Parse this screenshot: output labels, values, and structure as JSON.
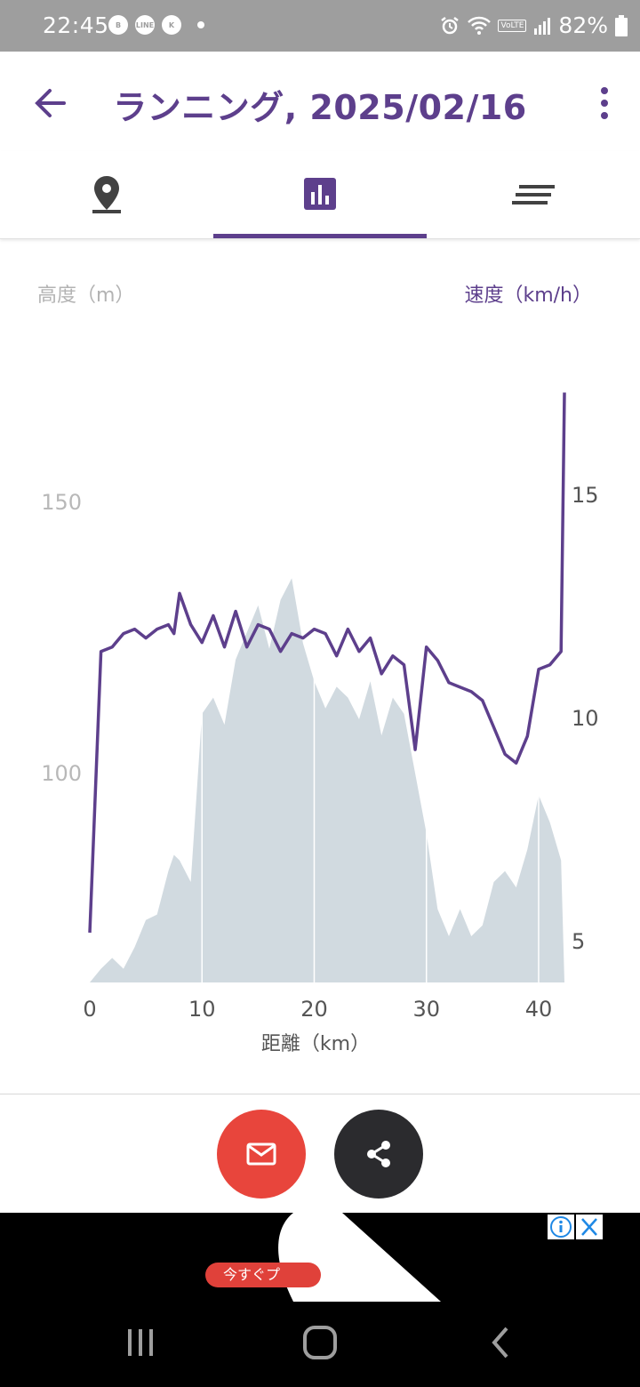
{
  "status": {
    "time": "22:45",
    "battery": "82%",
    "notif_icons": [
      "B",
      "LINE",
      "K"
    ],
    "volte_label": "VoLTE"
  },
  "appbar": {
    "title": "ランニング, 2025/02/16"
  },
  "tabs": [
    {
      "name": "map",
      "icon": "location-pin-icon"
    },
    {
      "name": "chart",
      "icon": "bar-chart-icon",
      "selected": true
    },
    {
      "name": "details",
      "icon": "list-lines-icon"
    }
  ],
  "chart": {
    "left_axis_title": "高度（m）",
    "right_axis_title": "速度（km/h）",
    "xlabel": "距離（km）"
  },
  "chart_data": {
    "type": "area",
    "x": [
      0,
      1,
      2,
      3,
      4,
      5,
      6,
      7,
      7.5,
      8,
      9,
      10,
      11,
      12,
      13,
      14,
      15,
      16,
      17,
      18,
      19,
      20,
      21,
      22,
      23,
      24,
      25,
      26,
      27,
      28,
      29,
      30,
      31,
      32,
      33,
      34,
      35,
      36,
      37,
      38,
      39,
      40,
      41,
      42,
      42.3
    ],
    "x_ticks": [
      0,
      10,
      20,
      30,
      40
    ],
    "xlim": [
      0,
      42.3
    ],
    "left_ticks": [
      100,
      150
    ],
    "right_ticks": [
      5,
      10,
      15
    ],
    "left_ylim": [
      61,
      150
    ],
    "right_ylim": [
      5,
      15
    ],
    "series": [
      {
        "name": "高度",
        "axis": "left",
        "color": "#d1dae0",
        "values": [
          61,
          64,
          66,
          64,
          68,
          73,
          74,
          82,
          85,
          84,
          80,
          111,
          114,
          109,
          121,
          126,
          131,
          123,
          132,
          136,
          124,
          117,
          112,
          116,
          114,
          110,
          117,
          107,
          114,
          111,
          100,
          89,
          75,
          70,
          75,
          70,
          72,
          80,
          82,
          79,
          86,
          96,
          91,
          84,
          61
        ]
      },
      {
        "name": "速度",
        "axis": "right",
        "color": "#5d3f8c",
        "values": [
          5.2,
          11.5,
          11.6,
          11.9,
          12.0,
          11.8,
          12.0,
          12.1,
          11.9,
          12.8,
          12.1,
          11.7,
          12.3,
          11.6,
          12.4,
          11.6,
          12.1,
          12.0,
          11.5,
          11.9,
          11.8,
          12.0,
          11.9,
          11.4,
          12.0,
          11.5,
          11.8,
          11.0,
          11.4,
          11.2,
          9.3,
          11.6,
          11.3,
          10.8,
          10.7,
          10.6,
          10.4,
          9.8,
          9.2,
          9.0,
          9.6,
          11.1,
          11.2,
          11.5,
          17.3
        ]
      }
    ]
  },
  "ad": {
    "button_label": "今すぐプ",
    "info": "i",
    "close": "✕"
  },
  "fabs": {
    "email": "email-icon",
    "share": "share-icon"
  }
}
